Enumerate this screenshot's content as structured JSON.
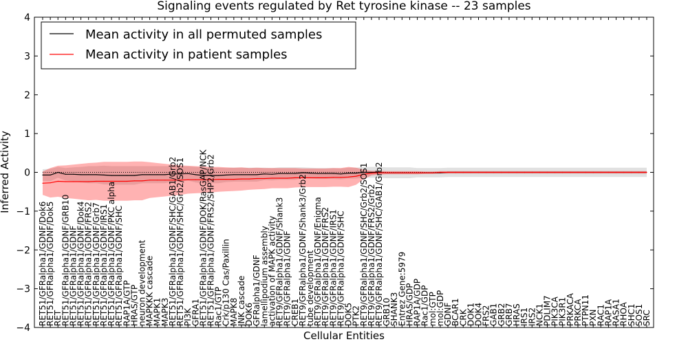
{
  "chart_data": {
    "type": "line",
    "title": "Signaling events regulated by Ret tyrosine kinase -- 23 samples",
    "xlabel": "Cellular Entities",
    "ylabel": "Inferred Activity",
    "ylim": [
      -4,
      4
    ],
    "yticks": [
      "4",
      "3",
      "2",
      "1",
      "0",
      "−1",
      "−2",
      "−3",
      "−4"
    ],
    "ytick_values": [
      4,
      3,
      2,
      1,
      0,
      -1,
      -2,
      -3,
      -4
    ],
    "grid": false,
    "legend_position": "top-left",
    "categories": [
      "RET51/GFRalpha1/GDNF/Dok6",
      "RET51/GFRalpha1/GDNF/Dok5",
      "RET",
      "RET51/GFRalpha1/GDNF/GRB10",
      "RET51/GFRalpha1/GDNF",
      "RET51/GFRalpha1/GDNF/Dok4",
      "RET51/GFRalpha1/GDNF/FRS2",
      "RET51/GFRalpha1/GDNF/Grb7",
      "RET51/GFRalpha1/GDNF/IRS1",
      "RET51/GFRalpha1/GDNF/PKC alpha",
      "RET51/GFRalpha1/GDNF/SHC",
      "RAP1A/GTP",
      "HRAS/GTP",
      "neuron development",
      "MAPKKK cascade",
      "MAPK1",
      "MAPK3",
      "RET51/GFRalpha1/GDNF/SHC/GAB1/Grb2",
      "RET51/GFRalpha1/GDNF/SHC/Grb2/SOS1",
      "PI3K",
      "GFRA1",
      "RET51/GFRalpha1/GDNF/DOK/RasGAP/NCK",
      "RET51/GFRalpha1/GDNF/FRS2/SHP2/Grb2",
      "Rac1/GTP",
      "Crk/p130 Cas/Paxillin",
      "MAPK8",
      "JNK cascade",
      "DOK6",
      "GFRalpha1/GDNF",
      "lamellipodium assembly",
      "activation of MAPK activity",
      "RET9/GFRalpha1/GDNF/Shank3",
      "RET9/GFRalpha1/GDNF",
      "CREB1",
      "RET9/GFRalpha1/GDNF/Shank3/Grb2",
      "tube development",
      "RET9/GFRalpha1/GDNF/Enigma",
      "RET9/GFRalpha1/GDNF/FRS2",
      "RET9/GFRalpha1/GDNF/IRS1",
      "RET9/GFRalpha1/GDNF/SHC",
      "DOK5",
      "PTK2",
      "RET9/GFRalpha1/GDNF/SHC/Grb2/SOS1",
      "RET9/GFRalpha1/GDNF/FRS2/Grb2",
      "RET9/GFRalpha1/GDNF/SHC/GAB1/Grb2",
      "GRB10",
      "SHANK3",
      "Entrez Gene:5979",
      "HRAS/GDP",
      "RAP1A/GDP",
      "Rac1/GDP",
      "mol:GTP",
      "mol:GDP",
      "GDNF",
      "BCAR1",
      "CRK",
      "DOK1",
      "DOK4",
      "FRS2",
      "GAB1",
      "GRB2",
      "GRB7",
      "HRAS",
      "IRS1",
      "IRS2",
      "NCK1",
      "PDLIM7",
      "PIK3CA",
      "PIK3R1",
      "PRKACA",
      "PRKCA",
      "PTPN11",
      "PXN",
      "RAC1",
      "RAP1A",
      "RASA1",
      "RHOA",
      "SHC1",
      "SOS1",
      "SRC"
    ],
    "series": [
      {
        "name": "Mean activity in all permuted samples",
        "color": "#000000",
        "values": [
          -0.07,
          -0.07,
          0.0,
          -0.05,
          -0.05,
          -0.06,
          -0.06,
          -0.06,
          -0.07,
          -0.08,
          -0.08,
          -0.08,
          -0.08,
          -0.06,
          -0.06,
          -0.06,
          -0.06,
          -0.04,
          -0.04,
          -0.03,
          -0.06,
          -0.08,
          -0.08,
          -0.08,
          -0.07,
          -0.06,
          -0.06,
          -0.06,
          -0.06,
          -0.04,
          -0.05,
          -0.03,
          -0.03,
          -0.03,
          -0.01,
          -0.02,
          -0.03,
          -0.03,
          -0.03,
          -0.04,
          -0.02,
          -0.02,
          0.0,
          0.0,
          0.0,
          -0.01,
          -0.01,
          -0.01,
          -0.01,
          -0.01,
          -0.01,
          -0.01,
          -0.01,
          0.0,
          0.0,
          0.0,
          0.0,
          0.0,
          0.0,
          0.0,
          0.0,
          0.0,
          0.0,
          0.0,
          0.0,
          0.0,
          0.0,
          0.0,
          0.0,
          0.0,
          0.0,
          0.0,
          0.0,
          0.0,
          0.0,
          0.0,
          0.0,
          0.0,
          0.0,
          0.0
        ],
        "std": [
          0.15,
          0.16,
          0.14,
          0.16,
          0.18,
          0.2,
          0.22,
          0.22,
          0.24,
          0.24,
          0.24,
          0.24,
          0.24,
          0.22,
          0.22,
          0.22,
          0.22,
          0.2,
          0.2,
          0.18,
          0.2,
          0.2,
          0.2,
          0.2,
          0.18,
          0.18,
          0.18,
          0.18,
          0.18,
          0.16,
          0.16,
          0.16,
          0.16,
          0.16,
          0.14,
          0.14,
          0.14,
          0.14,
          0.14,
          0.14,
          0.14,
          0.14,
          0.14,
          0.14,
          0.14,
          0.14,
          0.14,
          0.14,
          0.14,
          0.12,
          0.12,
          0.12,
          0.12,
          0.12,
          0.12,
          0.12,
          0.12,
          0.12,
          0.12,
          0.12,
          0.12,
          0.12,
          0.12,
          0.12,
          0.12,
          0.12,
          0.12,
          0.12,
          0.12,
          0.12,
          0.12,
          0.12,
          0.12,
          0.12,
          0.12,
          0.12,
          0.12,
          0.12,
          0.12,
          0.12
        ]
      },
      {
        "name": "Mean activity in patient samples",
        "color": "#ff0000",
        "values": [
          -0.28,
          -0.27,
          -0.23,
          -0.24,
          -0.24,
          -0.24,
          -0.24,
          -0.23,
          -0.23,
          -0.23,
          -0.23,
          -0.23,
          -0.22,
          -0.22,
          -0.2,
          -0.2,
          -0.2,
          -0.2,
          -0.2,
          -0.19,
          -0.19,
          -0.19,
          -0.19,
          -0.18,
          -0.18,
          -0.18,
          -0.17,
          -0.17,
          -0.16,
          -0.16,
          -0.15,
          -0.15,
          -0.15,
          -0.14,
          -0.14,
          -0.14,
          -0.14,
          -0.14,
          -0.13,
          -0.13,
          -0.12,
          -0.1,
          -0.05,
          -0.02,
          -0.01,
          -0.01,
          -0.01,
          -0.01,
          -0.01,
          -0.01,
          -0.01,
          -0.01,
          0.0,
          0.0,
          0.0,
          0.0,
          0.0,
          0.0,
          0.0,
          0.0,
          0.0,
          0.0,
          0.0,
          0.0,
          0.0,
          0.0,
          0.0,
          0.0,
          0.0,
          0.0,
          0.0,
          0.0,
          0.0,
          0.0,
          0.0,
          0.0,
          0.0,
          0.0,
          0.0,
          0.0
        ],
        "std": [
          0.3,
          0.38,
          0.4,
          0.42,
          0.44,
          0.46,
          0.48,
          0.48,
          0.5,
          0.5,
          0.5,
          0.5,
          0.5,
          0.5,
          0.46,
          0.44,
          0.42,
          0.4,
          0.38,
          0.36,
          0.35,
          0.34,
          0.33,
          0.32,
          0.31,
          0.3,
          0.3,
          0.28,
          0.28,
          0.27,
          0.26,
          0.26,
          0.26,
          0.25,
          0.24,
          0.24,
          0.24,
          0.24,
          0.24,
          0.24,
          0.26,
          0.22,
          0.12,
          0.06,
          0.05,
          0.04,
          0.04,
          0.04,
          0.04,
          0.04,
          0.03,
          0.03,
          0.03,
          0.03,
          0.03,
          0.03,
          0.03,
          0.03,
          0.03,
          0.03,
          0.03,
          0.03,
          0.03,
          0.03,
          0.03,
          0.03,
          0.03,
          0.03,
          0.03,
          0.03,
          0.03,
          0.03,
          0.03,
          0.03,
          0.03,
          0.03,
          0.03,
          0.03,
          0.03,
          0.03
        ]
      }
    ]
  }
}
